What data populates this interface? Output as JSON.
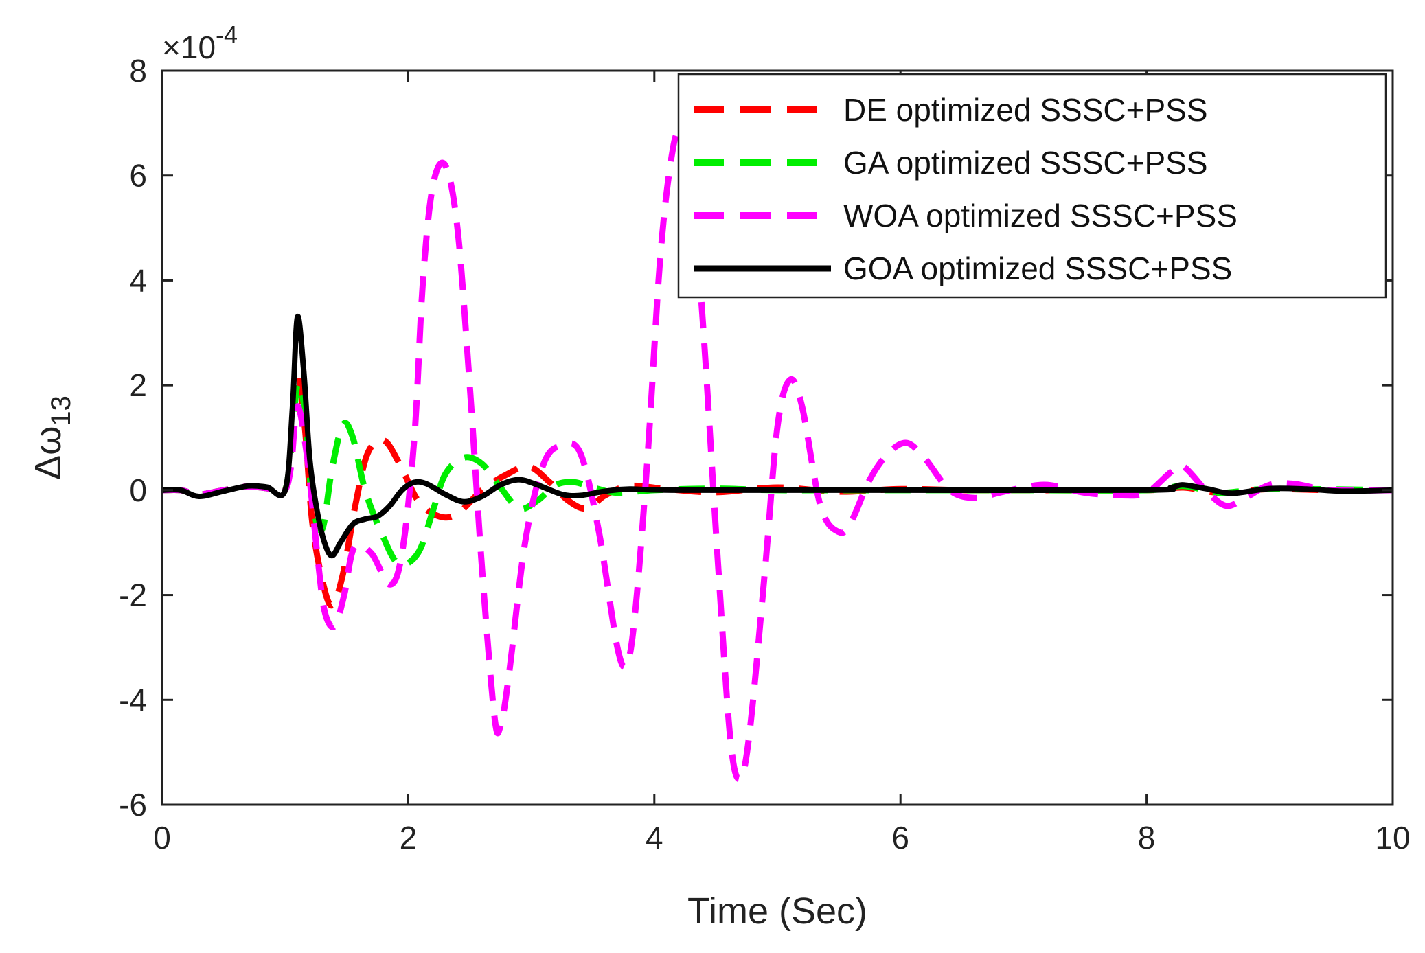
{
  "chart_data": {
    "type": "line",
    "title": "",
    "xlabel": "Time (Sec)",
    "ylabel": "Δω",
    "ylabel_subscript": "13",
    "y_exponent_label": {
      "times": "×",
      "base": "10",
      "power": "-4"
    },
    "xlim": [
      0,
      10
    ],
    "ylim": [
      -6,
      8
    ],
    "xticks": [
      0,
      2,
      4,
      6,
      8,
      10
    ],
    "yticks": [
      -6,
      -4,
      -2,
      0,
      2,
      4,
      6,
      8
    ],
    "xtick_labels": [
      "0",
      "2",
      "4",
      "6",
      "8",
      "10"
    ],
    "ytick_labels": [
      "-6",
      "-4",
      "-2",
      "0",
      "2",
      "4",
      "6",
      "8"
    ],
    "grid": false,
    "legend_position": "top-right",
    "series": [
      {
        "name": "DE optimized SSSC+PSS",
        "color": "#ff0000",
        "style": "dashed",
        "points": [
          [
            0,
            0
          ],
          [
            0.15,
            0
          ],
          [
            0.3,
            -0.08
          ],
          [
            0.5,
            0
          ],
          [
            0.7,
            0.07
          ],
          [
            0.9,
            0.02
          ],
          [
            1.0,
            0
          ],
          [
            1.05,
            0.8
          ],
          [
            1.1,
            2.2
          ],
          [
            1.16,
            1.2
          ],
          [
            1.22,
            -0.6
          ],
          [
            1.3,
            -1.7
          ],
          [
            1.38,
            -2.2
          ],
          [
            1.47,
            -1.6
          ],
          [
            1.57,
            -0.3
          ],
          [
            1.67,
            0.7
          ],
          [
            1.8,
            0.95
          ],
          [
            1.93,
            0.5
          ],
          [
            2.08,
            -0.2
          ],
          [
            2.25,
            -0.5
          ],
          [
            2.4,
            -0.45
          ],
          [
            2.6,
            0
          ],
          [
            2.8,
            0.3
          ],
          [
            2.98,
            0.45
          ],
          [
            3.15,
            0.15
          ],
          [
            3.3,
            -0.2
          ],
          [
            3.45,
            -0.35
          ],
          [
            3.6,
            -0.1
          ],
          [
            3.8,
            0.08
          ],
          [
            4.1,
            0.02
          ],
          [
            4.5,
            -0.04
          ],
          [
            5.0,
            0.05
          ],
          [
            5.5,
            -0.03
          ],
          [
            6.0,
            0.02
          ],
          [
            6.5,
            0
          ],
          [
            7.0,
            0
          ],
          [
            8.0,
            0
          ],
          [
            8.3,
            0.05
          ],
          [
            8.6,
            -0.05
          ],
          [
            9.0,
            0.02
          ],
          [
            9.5,
            0
          ],
          [
            10,
            0
          ]
        ]
      },
      {
        "name": "GA optimized SSSC+PSS",
        "color": "#00ee00",
        "style": "dashed",
        "points": [
          [
            0,
            0
          ],
          [
            0.15,
            0
          ],
          [
            0.3,
            -0.08
          ],
          [
            0.5,
            0
          ],
          [
            0.7,
            0.07
          ],
          [
            0.9,
            0.02
          ],
          [
            1.0,
            0
          ],
          [
            1.05,
            0.8
          ],
          [
            1.1,
            2.0
          ],
          [
            1.16,
            1.5
          ],
          [
            1.22,
            -0.2
          ],
          [
            1.3,
            -0.75
          ],
          [
            1.38,
            0.4
          ],
          [
            1.47,
            1.25
          ],
          [
            1.55,
            1.0
          ],
          [
            1.65,
            0
          ],
          [
            1.78,
            -0.8
          ],
          [
            1.92,
            -1.4
          ],
          [
            2.08,
            -1.2
          ],
          [
            2.2,
            -0.4
          ],
          [
            2.3,
            0.3
          ],
          [
            2.45,
            0.62
          ],
          [
            2.6,
            0.5
          ],
          [
            2.75,
            0.05
          ],
          [
            2.9,
            -0.35
          ],
          [
            3.05,
            -0.2
          ],
          [
            3.2,
            0.1
          ],
          [
            3.35,
            0.15
          ],
          [
            3.5,
            0.05
          ],
          [
            3.7,
            -0.05
          ],
          [
            4.0,
            0
          ],
          [
            4.5,
            0.03
          ],
          [
            5.0,
            0
          ],
          [
            6.0,
            0
          ],
          [
            7.0,
            0
          ],
          [
            8.0,
            0
          ],
          [
            8.3,
            0.08
          ],
          [
            8.6,
            -0.05
          ],
          [
            9.0,
            0.02
          ],
          [
            10,
            0
          ]
        ]
      },
      {
        "name": "WOA optimized SSSC+PSS",
        "color": "#ff00ff",
        "style": "dashed",
        "points": [
          [
            0,
            0
          ],
          [
            0.15,
            0
          ],
          [
            0.3,
            -0.08
          ],
          [
            0.5,
            0
          ],
          [
            0.7,
            0.07
          ],
          [
            0.9,
            0.02
          ],
          [
            1.0,
            0
          ],
          [
            1.05,
            0.5
          ],
          [
            1.1,
            1.6
          ],
          [
            1.18,
            0.6
          ],
          [
            1.26,
            -1.2
          ],
          [
            1.32,
            -2.3
          ],
          [
            1.4,
            -2.6
          ],
          [
            1.48,
            -2.0
          ],
          [
            1.56,
            -1.1
          ],
          [
            1.7,
            -1.2
          ],
          [
            1.85,
            -1.8
          ],
          [
            1.95,
            -1.2
          ],
          [
            2.05,
            1.0
          ],
          [
            2.12,
            4.0
          ],
          [
            2.2,
            5.8
          ],
          [
            2.3,
            6.2
          ],
          [
            2.4,
            5.0
          ],
          [
            2.5,
            2.0
          ],
          [
            2.6,
            -1.5
          ],
          [
            2.7,
            -4.3
          ],
          [
            2.75,
            -4.5
          ],
          [
            2.82,
            -3.5
          ],
          [
            2.95,
            -1.0
          ],
          [
            3.1,
            0.5
          ],
          [
            3.25,
            0.85
          ],
          [
            3.4,
            0.7
          ],
          [
            3.55,
            -0.8
          ],
          [
            3.7,
            -3.0
          ],
          [
            3.78,
            -3.3
          ],
          [
            3.85,
            -2.2
          ],
          [
            3.95,
            0.8
          ],
          [
            4.05,
            4.5
          ],
          [
            4.15,
            6.5
          ],
          [
            4.22,
            6.8
          ],
          [
            4.3,
            6.0
          ],
          [
            4.4,
            3.0
          ],
          [
            4.52,
            -1.5
          ],
          [
            4.62,
            -4.8
          ],
          [
            4.7,
            -5.5
          ],
          [
            4.78,
            -4.5
          ],
          [
            4.9,
            -1.5
          ],
          [
            5.0,
            1.2
          ],
          [
            5.1,
            2.1
          ],
          [
            5.2,
            1.6
          ],
          [
            5.35,
            -0.3
          ],
          [
            5.5,
            -0.8
          ],
          [
            5.6,
            -0.6
          ],
          [
            5.75,
            0.2
          ],
          [
            5.9,
            0.7
          ],
          [
            6.05,
            0.9
          ],
          [
            6.2,
            0.6
          ],
          [
            6.4,
            0
          ],
          [
            6.6,
            -0.15
          ],
          [
            6.8,
            -0.05
          ],
          [
            7.0,
            0.05
          ],
          [
            7.2,
            0.1
          ],
          [
            7.5,
            -0.05
          ],
          [
            7.8,
            -0.1
          ],
          [
            8.0,
            -0.05
          ],
          [
            8.2,
            0.35
          ],
          [
            8.3,
            0.45
          ],
          [
            8.5,
            -0.05
          ],
          [
            8.65,
            -0.3
          ],
          [
            8.8,
            -0.15
          ],
          [
            9.0,
            0.1
          ],
          [
            9.2,
            0.12
          ],
          [
            9.5,
            0
          ],
          [
            10,
            0
          ]
        ]
      },
      {
        "name": "GOA optimized SSSC+PSS",
        "color": "#000000",
        "style": "solid",
        "points": [
          [
            0,
            0
          ],
          [
            0.15,
            0
          ],
          [
            0.3,
            -0.12
          ],
          [
            0.5,
            -0.02
          ],
          [
            0.7,
            0.08
          ],
          [
            0.85,
            0.06
          ],
          [
            1.0,
            0
          ],
          [
            1.06,
            1.6
          ],
          [
            1.1,
            3.3
          ],
          [
            1.15,
            2.3
          ],
          [
            1.2,
            0.6
          ],
          [
            1.26,
            -0.4
          ],
          [
            1.32,
            -1.0
          ],
          [
            1.38,
            -1.25
          ],
          [
            1.45,
            -1.0
          ],
          [
            1.55,
            -0.65
          ],
          [
            1.65,
            -0.55
          ],
          [
            1.75,
            -0.5
          ],
          [
            1.85,
            -0.3
          ],
          [
            1.95,
            0
          ],
          [
            2.05,
            0.15
          ],
          [
            2.15,
            0.12
          ],
          [
            2.3,
            -0.08
          ],
          [
            2.45,
            -0.22
          ],
          [
            2.6,
            -0.12
          ],
          [
            2.75,
            0.1
          ],
          [
            2.9,
            0.2
          ],
          [
            3.05,
            0.1
          ],
          [
            3.25,
            -0.08
          ],
          [
            3.4,
            -0.1
          ],
          [
            3.6,
            -0.02
          ],
          [
            3.8,
            0.02
          ],
          [
            4.2,
            0
          ],
          [
            6.0,
            0
          ],
          [
            8.0,
            0
          ],
          [
            8.2,
            0.05
          ],
          [
            8.3,
            0.1
          ],
          [
            8.5,
            0.02
          ],
          [
            8.7,
            -0.06
          ],
          [
            9.0,
            0.03
          ],
          [
            9.3,
            0.02
          ],
          [
            9.6,
            -0.02
          ],
          [
            10,
            0
          ]
        ]
      }
    ]
  }
}
